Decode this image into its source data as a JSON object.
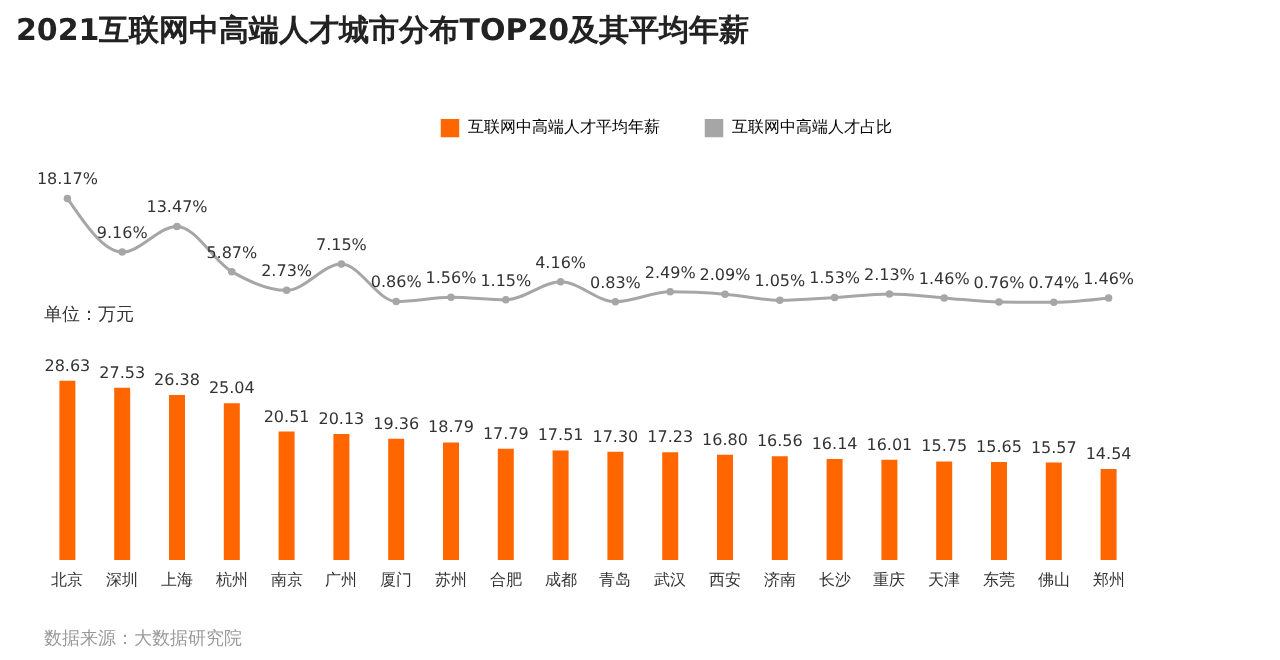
{
  "chart_data": [
    {
      "type": "line",
      "title": "2021互联网中高端人才城市分布TOP20及其平均年薪",
      "categories": [
        null,
        null,
        null,
        null,
        null,
        null,
        null,
        null,
        null,
        null,
        null,
        null,
        null,
        null,
        null,
        null,
        null,
        null,
        null,
        null
      ],
      "series": [
        {
          "name": "互联网中高端人才占比",
          "color": "#a6a6a6",
          "values": [
            18.17,
            9.16,
            13.47,
            5.87,
            2.73,
            7.15,
            0.86,
            1.56,
            1.15,
            4.16,
            0.83,
            2.49,
            2.09,
            1.05,
            1.53,
            2.13,
            1.46,
            0.76,
            0.74,
            1.46
          ],
          "value_labels": [
            "18.17%",
            "9.16%",
            "13.47%",
            "5.87%",
            "2.73%",
            "7.15%",
            "0.86%",
            "1.56%",
            "1.15%",
            "4.16%",
            "0.83%",
            "2.49%",
            "2.09%",
            "1.05%",
            "1.53%",
            "2.13%",
            "1.46%",
            "0.76%",
            "0.74%",
            "1.46%"
          ]
        }
      ],
      "tick_labels": false,
      "legend": "top",
      "marker": "circle"
    },
    {
      "type": "bar",
      "categories": [
        "北京",
        "深圳",
        "上海",
        "杭州",
        "南京",
        "广州",
        "厦门",
        "苏州",
        "合肥",
        "成都",
        "青岛",
        "武汉",
        "西安",
        "济南",
        "长沙",
        "重庆",
        "天津",
        "东莞",
        "佛山",
        "郑州"
      ],
      "series": [
        {
          "name": "互联网中高端人才平均年薪",
          "color": "#ff6600",
          "values": [
            28.63,
            27.53,
            26.38,
            25.04,
            20.51,
            20.13,
            19.36,
            18.79,
            17.79,
            17.51,
            17.3,
            17.23,
            16.8,
            16.56,
            16.14,
            16.01,
            15.75,
            15.65,
            15.57,
            14.54
          ],
          "value_labels": [
            "28.63",
            "27.53",
            "26.38",
            "25.04",
            "20.51",
            "20.13",
            "19.36",
            "18.79",
            "17.79",
            "17.51",
            "17.30",
            "17.23",
            "16.80",
            "16.56",
            "16.14",
            "16.01",
            "15.75",
            "15.65",
            "15.57",
            "14.54"
          ]
        }
      ],
      "tick_labels": "x",
      "legend": "top",
      "annotations": [
        "单位：万元",
        "数据来源：大数据研究院"
      ]
    }
  ]
}
